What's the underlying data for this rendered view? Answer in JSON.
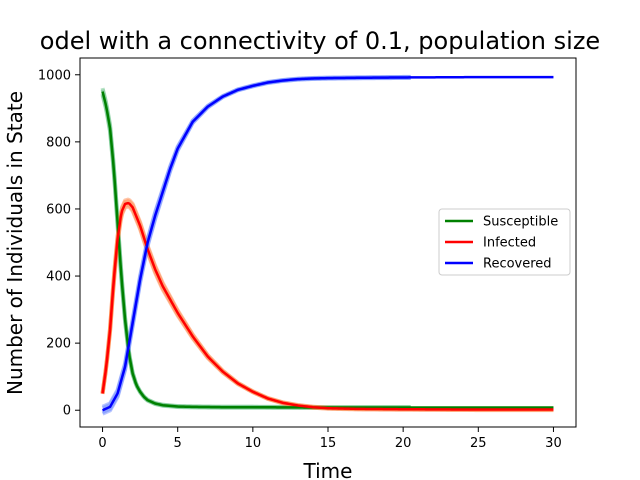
{
  "chart_data": {
    "type": "line",
    "title": "odel with a connectivity of 0.1, population size",
    "xlabel": "Time",
    "ylabel": "Number of Individuals in State",
    "xlim": [
      -1.5,
      31.5
    ],
    "ylim": [
      -50,
      1050
    ],
    "xticks": [
      0,
      5,
      10,
      15,
      20,
      25,
      30
    ],
    "yticks": [
      0,
      200,
      400,
      600,
      800,
      1000
    ],
    "legend_position": "center-right",
    "grid": false,
    "series": [
      {
        "name": "Susceptible",
        "color": "#008000",
        "band_color": "#5fbf7f",
        "x": [
          0,
          0.25,
          0.5,
          0.75,
          1,
          1.25,
          1.5,
          1.75,
          2,
          2.25,
          2.5,
          2.75,
          3,
          3.5,
          4,
          5,
          6,
          8,
          10,
          15,
          20,
          25,
          30
        ],
        "values": [
          950,
          905,
          840,
          720,
          560,
          400,
          270,
          170,
          110,
          75,
          55,
          40,
          30,
          20,
          15,
          11,
          10,
          9,
          9,
          8,
          8,
          8,
          8
        ],
        "band_end": 20.5
      },
      {
        "name": "Infected",
        "color": "#ff0000",
        "band_color": "#ff7f3f",
        "x": [
          0,
          0.25,
          0.5,
          0.75,
          1,
          1.25,
          1.5,
          1.75,
          2,
          2.5,
          3,
          3.5,
          4,
          5,
          6,
          7,
          8,
          9,
          10,
          11,
          12,
          13,
          14,
          15,
          17,
          20,
          25,
          30
        ],
        "values": [
          50,
          130,
          240,
          390,
          510,
          590,
          615,
          618,
          605,
          550,
          480,
          420,
          370,
          290,
          220,
          160,
          115,
          80,
          55,
          35,
          22,
          14,
          9,
          6,
          4,
          3,
          2,
          2
        ],
        "band_end": 30
      },
      {
        "name": "Recovered",
        "color": "#0000ff",
        "band_color": "#5f7fff",
        "x": [
          0,
          0.5,
          1,
          1.5,
          2,
          2.5,
          3,
          3.5,
          4,
          4.5,
          5,
          5.5,
          6,
          7,
          8,
          9,
          10,
          11,
          12,
          13,
          14,
          15,
          17,
          20,
          25,
          30
        ],
        "values": [
          0,
          10,
          50,
          130,
          260,
          390,
          500,
          580,
          650,
          720,
          780,
          820,
          860,
          905,
          935,
          955,
          967,
          977,
          983,
          987,
          989,
          990,
          991,
          992,
          993,
          993
        ],
        "band_end": 20.5
      }
    ]
  }
}
